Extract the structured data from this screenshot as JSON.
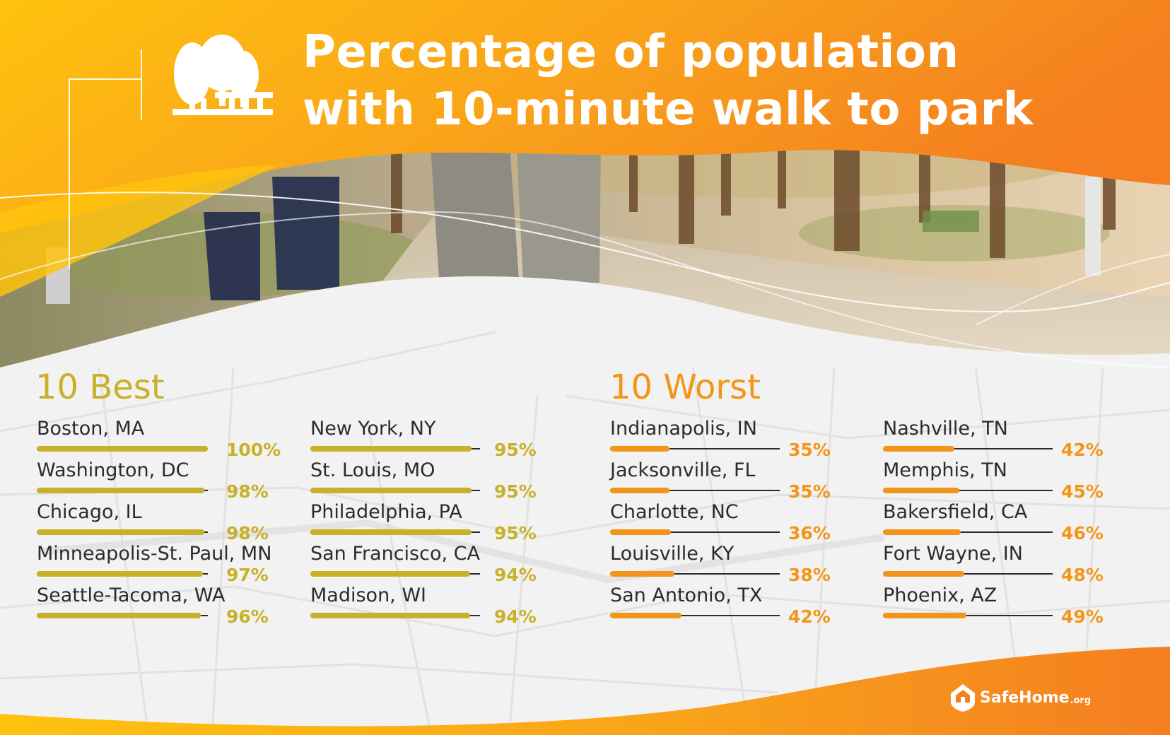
{
  "header": {
    "title_line1": "Percentage of population",
    "title_line2": "with 10-minute walk to park",
    "icon": "park-trees-bench-icon"
  },
  "colors": {
    "orange_light": "#ffc20e",
    "orange_dark": "#f47e20",
    "best_accent": "#c8b128",
    "worst_accent": "#f39519",
    "background": "#f2f2f2",
    "text": "#2b2b2b"
  },
  "chart_data": {
    "type": "bar",
    "title": "Percentage of population with 10-minute walk to park",
    "unit": "%",
    "xlim": [
      0,
      100
    ],
    "groups": [
      {
        "heading": "10 Best",
        "color": "#c8b128",
        "columns": [
          [
            {
              "label": "Boston, MA",
              "value": 100,
              "display": "100%"
            },
            {
              "label": "Washington, DC",
              "value": 98,
              "display": "98%"
            },
            {
              "label": "Chicago, IL",
              "value": 98,
              "display": "98%"
            },
            {
              "label": "Minneapolis-St. Paul, MN",
              "value": 97,
              "display": "97%"
            },
            {
              "label": "Seattle-Tacoma, WA",
              "value": 96,
              "display": "96%"
            }
          ],
          [
            {
              "label": "New York, NY",
              "value": 95,
              "display": "95%"
            },
            {
              "label": "St. Louis, MO",
              "value": 95,
              "display": "95%"
            },
            {
              "label": "Philadelphia, PA",
              "value": 95,
              "display": "95%"
            },
            {
              "label": "San Francisco, CA",
              "value": 94,
              "display": "94%"
            },
            {
              "label": "Madison, WI",
              "value": 94,
              "display": "94%"
            }
          ]
        ]
      },
      {
        "heading": "10 Worst",
        "color": "#f39519",
        "columns": [
          [
            {
              "label": "Indianapolis, IN",
              "value": 35,
              "display": "35%"
            },
            {
              "label": "Jacksonville, FL",
              "value": 35,
              "display": "35%"
            },
            {
              "label": "Charlotte, NC",
              "value": 36,
              "display": "36%"
            },
            {
              "label": "Louisville, KY",
              "value": 38,
              "display": "38%"
            },
            {
              "label": "San Antonio, TX",
              "value": 42,
              "display": "42%"
            }
          ],
          [
            {
              "label": "Nashville, TN",
              "value": 42,
              "display": "42%"
            },
            {
              "label": "Memphis, TN",
              "value": 45,
              "display": "45%"
            },
            {
              "label": "Bakersfield, CA",
              "value": 46,
              "display": "46%"
            },
            {
              "label": "Fort Wayne, IN",
              "value": 48,
              "display": "48%"
            },
            {
              "label": "Phoenix, AZ",
              "value": 49,
              "display": "49%"
            }
          ]
        ]
      }
    ]
  },
  "logo": {
    "name": "SafeHome",
    "suffix": ".org",
    "icon": "house-shield-icon"
  }
}
